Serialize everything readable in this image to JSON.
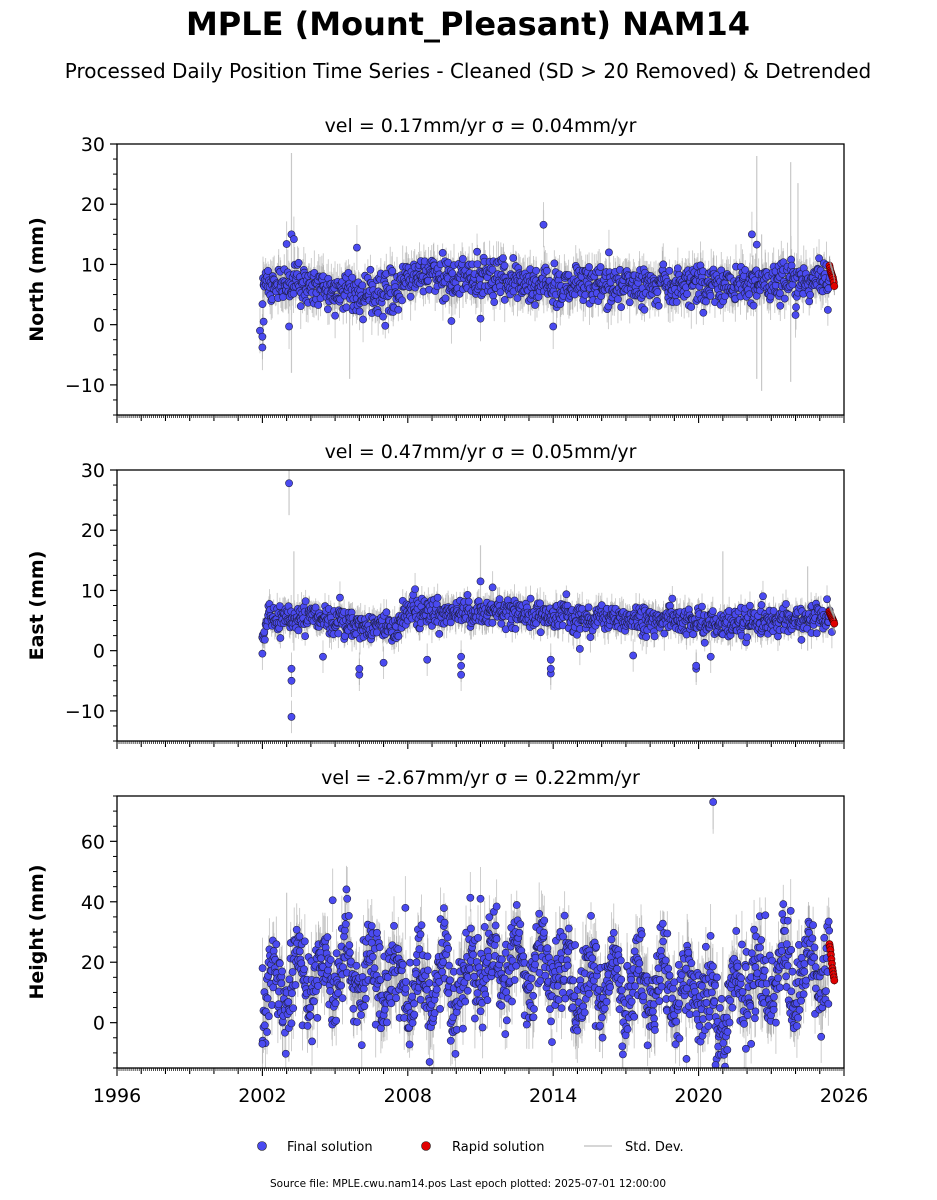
{
  "title": "MPLE (Mount_Pleasant) NAM14",
  "subtitle": "Processed Daily Position Time Series - Cleaned (SD > 20 Removed) & Detrended",
  "footer": "Source file: MPLE.cwu.nam14.pos  Last epoch plotted: 2025-07-01 12:00:00",
  "colors": {
    "final": "#4a4af0",
    "rapid": "#e00000",
    "stddev": "#c8c8c8",
    "axis": "#000000"
  },
  "legend": {
    "final": "Final solution",
    "rapid": "Rapid solution",
    "stddev": "Std. Dev."
  },
  "chart_data": [
    {
      "type": "scatter",
      "title": "vel = 0.17mm/yr   σ = 0.04mm/yr",
      "ylabel": "North (mm)",
      "xlim": [
        1996,
        2026
      ],
      "ylim": [
        -15,
        30
      ],
      "yticks": [
        -10,
        0,
        10,
        20
      ],
      "yticks_extra": [
        30
      ],
      "xticks": [],
      "series": [
        {
          "name": "Final solution",
          "span": [
            2002.0,
            2025.4
          ],
          "baseline": [
            [
              2002.0,
              5.0
            ],
            [
              2002.1,
              7.0
            ],
            [
              2007.5,
              5.0
            ],
            [
              2008.0,
              8.0
            ],
            [
              2010.0,
              8.0
            ],
            [
              2013.5,
              6.5
            ],
            [
              2019.0,
              6.5
            ],
            [
              2021.0,
              6.5
            ],
            [
              2025.4,
              7.5
            ]
          ],
          "scatter_sd": 1.6,
          "band": 2.5,
          "outliers": [
            [
              2001.9,
              -1.0
            ],
            [
              2002.0,
              -3.8
            ],
            [
              2002.0,
              -2.0
            ],
            [
              2002.05,
              0.5
            ],
            [
              2003.0,
              13.4
            ],
            [
              2003.2,
              15.0
            ],
            [
              2003.3,
              14.2
            ],
            [
              2003.1,
              -0.3
            ],
            [
              2005.9,
              12.8
            ],
            [
              2011.0,
              1.0
            ],
            [
              2013.6,
              16.6
            ],
            [
              2014.0,
              -0.3
            ],
            [
              2016.3,
              12.0
            ],
            [
              2022.2,
              15.0
            ],
            [
              2022.4,
              13.3
            ],
            [
              2024.0,
              1.6
            ],
            [
              2005.0,
              1.5
            ],
            [
              2009.8,
              0.6
            ]
          ]
        },
        {
          "name": "Rapid solution",
          "span": [
            2025.4,
            2025.6
          ],
          "center": 8.0,
          "values": [
            9.8,
            9.4,
            9.0,
            8.7,
            8.5,
            8.2,
            8.0,
            7.8,
            7.4,
            7.0,
            6.4
          ]
        }
      ],
      "stddev_spikes": [
        [
          2003.2,
          -8.0,
          28.5
        ],
        [
          2005.6,
          -9.0,
          10.0
        ],
        [
          2022.4,
          -9.0,
          28.0
        ],
        [
          2022.6,
          -11.0,
          15.0
        ],
        [
          2023.8,
          -9.5,
          27.0
        ],
        [
          2024.1,
          2.0,
          23.5
        ],
        [
          2013.6,
          16.0,
          19.0
        ]
      ]
    },
    {
      "type": "scatter",
      "title": "vel = 0.47mm/yr   σ = 0.05mm/yr",
      "ylabel": "East (mm)",
      "xlim": [
        1996,
        2026
      ],
      "ylim": [
        -15,
        30
      ],
      "yticks": [
        -10,
        0,
        10,
        20
      ],
      "yticks_extra": [
        30
      ],
      "xticks": [],
      "series": [
        {
          "name": "Final solution",
          "span": [
            2002.0,
            2025.4
          ],
          "baseline": [
            [
              2002.0,
              3.0
            ],
            [
              2002.2,
              5.5
            ],
            [
              2005.0,
              5.0
            ],
            [
              2007.5,
              3.5
            ],
            [
              2008.0,
              6.5
            ],
            [
              2010.0,
              6.5
            ],
            [
              2012.0,
              6.5
            ],
            [
              2014.0,
              5.5
            ],
            [
              2019.0,
              5.0
            ],
            [
              2021.0,
              4.5
            ],
            [
              2025.4,
              5.5
            ]
          ],
          "scatter_sd": 1.1,
          "band": 1.8,
          "outliers": [
            [
              2003.1,
              27.8
            ],
            [
              2003.2,
              -11.0
            ],
            [
              2003.2,
              -5.0
            ],
            [
              2003.2,
              -3.0
            ],
            [
              2002.0,
              -0.5
            ],
            [
              2004.5,
              -1.0
            ],
            [
              2006.0,
              -4.0
            ],
            [
              2006.0,
              -3.0
            ],
            [
              2007.0,
              -2.0
            ],
            [
              2008.8,
              -1.5
            ],
            [
              2010.2,
              -4.0
            ],
            [
              2010.2,
              -2.5
            ],
            [
              2010.2,
              -1.0
            ],
            [
              2011.0,
              11.5
            ],
            [
              2011.5,
              10.5
            ],
            [
              2013.9,
              -3.8
            ],
            [
              2013.9,
              -3.0
            ],
            [
              2013.9,
              -1.5
            ],
            [
              2015.1,
              0.3
            ],
            [
              2017.3,
              -0.8
            ],
            [
              2019.9,
              -3.0
            ],
            [
              2019.9,
              -2.5
            ],
            [
              2020.5,
              -1.0
            ],
            [
              2025.5,
              3.1
            ],
            [
              2008.3,
              10.2
            ],
            [
              2005.2,
              8.8
            ]
          ]
        },
        {
          "name": "Rapid solution",
          "span": [
            2025.4,
            2025.6
          ],
          "center": 5.5,
          "values": [
            6.5,
            6.2,
            6.0,
            5.8,
            5.6,
            5.4,
            5.2,
            5.0,
            4.8,
            4.5
          ]
        }
      ],
      "stddev_spikes": [
        [
          2003.1,
          22.5,
          30.0
        ],
        [
          2003.3,
          0.0,
          16.5
        ],
        [
          2011.0,
          5.0,
          17.5
        ],
        [
          2021.0,
          2.0,
          16.5
        ],
        [
          2024.5,
          0.0,
          14.0
        ]
      ]
    },
    {
      "type": "scatter",
      "title": "vel = -2.67mm/yr   σ = 0.22mm/yr",
      "ylabel": "Height (mm)",
      "xlim": [
        1996,
        2026
      ],
      "ylim": [
        -15,
        75
      ],
      "yticks": [
        0,
        20,
        40,
        60
      ],
      "xticks": [
        1996,
        2002,
        2008,
        2014,
        2020,
        2026
      ],
      "series": [
        {
          "name": "Final solution",
          "span": [
            2002.0,
            2025.4
          ],
          "baseline": [
            [
              2002.0,
              10.0
            ],
            [
              2004.0,
              15.0
            ],
            [
              2006.0,
              18.0
            ],
            [
              2008.0,
              10.0
            ],
            [
              2010.0,
              13.0
            ],
            [
              2012.0,
              20.0
            ],
            [
              2014.0,
              16.0
            ],
            [
              2018.0,
              12.0
            ],
            [
              2020.0,
              10.0
            ],
            [
              2021.0,
              3.0
            ],
            [
              2022.0,
              12.0
            ],
            [
              2025.4,
              20.0
            ]
          ],
          "scatter_sd": 7.0,
          "band": 7.0,
          "seasonal_amp": 8.0,
          "outliers": [
            [
              2020.6,
              73.0
            ],
            [
              2011.0,
              41.0
            ],
            [
              2005.5,
              41.0
            ],
            [
              2004.9,
              40.5
            ],
            [
              2007.9,
              38.0
            ],
            [
              2019.5,
              -12.0
            ],
            [
              2008.9,
              -13.0
            ],
            [
              2020.7,
              -14.0
            ],
            [
              2002.0,
              -7.0
            ],
            [
              2023.8,
              37.0
            ]
          ]
        },
        {
          "name": "Rapid solution",
          "span": [
            2025.4,
            2025.6
          ],
          "center": 20.0,
          "values": [
            26.0,
            25.0,
            24.0,
            22.5,
            21.0,
            19.5,
            18.0,
            17.0,
            16.0,
            15.0,
            14.0
          ]
        }
      ],
      "stddev_spikes": [
        [
          2020.6,
          64.0,
          76.0
        ],
        [
          2003.0,
          10.0,
          43.0
        ],
        [
          2021.0,
          -5.0,
          25.0
        ]
      ]
    }
  ]
}
